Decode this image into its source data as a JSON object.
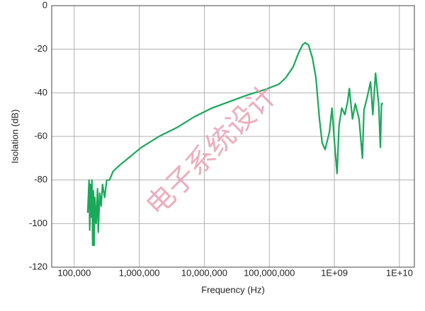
{
  "chart_data": {
    "type": "line",
    "x_label": "Frequency (Hz)",
    "y_label": "Isolation (dB)",
    "xlog": true,
    "grid": true,
    "xlim": [
      45000,
      17000000000
    ],
    "xticks": [
      {
        "value": 100000,
        "label": "100,000"
      },
      {
        "value": 1000000,
        "label": "1,000,000"
      },
      {
        "value": 10000000,
        "label": "10,000,000"
      },
      {
        "value": 100000000,
        "label": "100,000,000"
      },
      {
        "value": 1000000000,
        "label": "1E+09"
      },
      {
        "value": 10000000000,
        "label": "1E+10"
      }
    ],
    "ylim": [
      -120,
      0
    ],
    "yticks": [
      0,
      -20,
      -40,
      -60,
      -80,
      -100,
      -120
    ],
    "annotation": "电子系统设计",
    "series": [
      {
        "color": "#1aa85a",
        "x": [
          161000,
          169000,
          173000,
          178000,
          182000,
          187000,
          192000,
          197000,
          202000,
          207000,
          217000,
          228000,
          234000,
          246000,
          259000,
          272000,
          293000,
          316000,
          349000,
          396000,
          509000,
          742000,
          1080000,
          2010000,
          3760000,
          7030000,
          13100000,
          24500000,
          46000000,
          86000000,
          141000000,
          180000000,
          233000000,
          279000000,
          324000000,
          355000000,
          400000000,
          460000000,
          520000000,
          590000000,
          650000000,
          720000000,
          840000000,
          920000000,
          1000000000,
          1100000000,
          1180000000,
          1300000000,
          1450000000,
          1600000000,
          1700000000,
          1900000000,
          2100000000,
          2400000000,
          2700000000,
          2850000000,
          3200000000,
          3600000000,
          3900000000,
          4300000000,
          4800000000,
          5100000000,
          5300000000,
          5600000000
        ],
        "values": [
          -95,
          -80,
          -103,
          -82,
          -97,
          -80,
          -110,
          -85,
          -110,
          -88,
          -100,
          -84,
          -104,
          -86,
          -92,
          -82,
          -88,
          -80,
          -80,
          -76,
          -73,
          -69,
          -65,
          -60,
          -56,
          -51,
          -47,
          -44,
          -41,
          -38.5,
          -36,
          -33,
          -28,
          -22,
          -18,
          -17,
          -18,
          -24,
          -33,
          -52,
          -63,
          -66,
          -58,
          -47,
          -62,
          -77,
          -55,
          -47,
          -50,
          -44,
          -38,
          -52,
          -45,
          -52,
          -70,
          -48,
          -42,
          -35,
          -50,
          -31,
          -45,
          -65,
          -45,
          -45
        ]
      }
    ]
  }
}
